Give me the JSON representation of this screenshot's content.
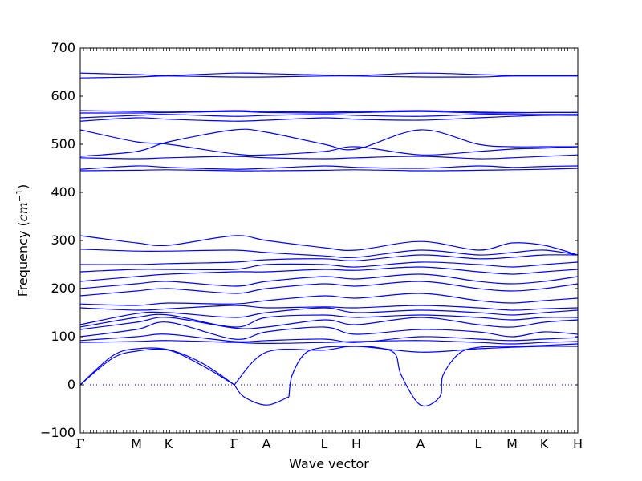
{
  "chart_data": {
    "type": "line",
    "title": "",
    "xlabel": "Wave vector",
    "ylabel_prefix": "Frequency (",
    "ylabel_unit_base": "cm",
    "ylabel_unit_exp": "−1",
    "ylabel_suffix": ")",
    "ylim": [
      -100,
      700
    ],
    "yticks": [
      -100,
      0,
      100,
      200,
      300,
      400,
      500,
      600,
      700
    ],
    "xlim": [
      0,
      15.5
    ],
    "grid": false,
    "zero_line": true,
    "line_color": "#0000ff",
    "zero_line_color": "#0000ff",
    "high_symmetry_points": [
      {
        "label": "Γ",
        "x": 0
      },
      {
        "label": "M",
        "x": 1.75
      },
      {
        "label": "K",
        "x": 2.75
      },
      {
        "label": "Γ",
        "x": 4.8
      },
      {
        "label": "A",
        "x": 5.8
      },
      {
        "label": "L",
        "x": 7.6
      },
      {
        "label": "H",
        "x": 8.6
      },
      {
        "label": "A",
        "x": 10.6
      },
      {
        "label": "L",
        "x": 12.4
      },
      {
        "label": "M",
        "x": 13.45
      },
      {
        "label": "K",
        "x": 14.45
      },
      {
        "label": "H",
        "x": 15.5
      }
    ],
    "series": [
      {
        "x": [
          0,
          1.0,
          1.75,
          2.75,
          3.8,
          4.8
        ],
        "y": [
          0,
          55,
          70,
          72,
          40,
          0
        ]
      },
      {
        "x": [
          0,
          1.0,
          1.75,
          2.75,
          3.8,
          4.8
        ],
        "y": [
          0,
          60,
          75,
          73,
          45,
          0
        ]
      },
      {
        "x": [
          4.8,
          5.1,
          5.8,
          6.5
        ],
        "y": [
          0,
          -25,
          -42,
          -25
        ]
      },
      {
        "x": [
          6.5,
          6.6,
          7.0,
          7.6,
          8.6,
          9.2,
          9.8,
          10.0,
          10.6,
          11.2,
          11.3,
          11.8,
          12.4,
          13.45,
          14.45,
          15.5
        ],
        "y": [
          -25,
          20,
          65,
          78,
          80,
          78,
          65,
          20,
          -42,
          -25,
          20,
          65,
          78,
          80,
          82,
          85
        ]
      },
      {
        "x": [
          4.8,
          5.8,
          7.6,
          8.6,
          10.6,
          12.4,
          13.45,
          14.45,
          15.5
        ],
        "y": [
          0,
          68,
          72,
          80,
          68,
          75,
          78,
          80,
          80
        ]
      },
      {
        "x": [
          0,
          1.75,
          2.75,
          4.8,
          5.8,
          7.6,
          8.6,
          10.6,
          12.4,
          13.45,
          14.45,
          15.5
        ],
        "y": [
          88,
          90,
          92,
          88,
          86,
          88,
          90,
          92,
          88,
          85,
          88,
          90
        ]
      },
      {
        "x": [
          0,
          1.75,
          2.75,
          4.8,
          5.8,
          7.6,
          8.6,
          10.6,
          12.4,
          13.45,
          14.45,
          15.5
        ],
        "y": [
          92,
          100,
          105,
          90,
          92,
          95,
          88,
          100,
          95,
          92,
          95,
          98
        ]
      },
      {
        "x": [
          0,
          1.75,
          2.75,
          4.8,
          5.8,
          7.6,
          8.6,
          10.6,
          12.4,
          13.45,
          14.45,
          15.5
        ],
        "y": [
          100,
          115,
          130,
          95,
          110,
          120,
          105,
          115,
          110,
          100,
          110,
          105
        ]
      },
      {
        "x": [
          0,
          1.75,
          2.75,
          4.8,
          5.8,
          7.6,
          8.6,
          10.6,
          12.4,
          13.45,
          14.45,
          15.5
        ],
        "y": [
          115,
          130,
          140,
          118,
          120,
          135,
          125,
          140,
          125,
          120,
          130,
          135
        ]
      },
      {
        "x": [
          0,
          1.75,
          2.75,
          4.8,
          5.8,
          7.6,
          8.6,
          10.6,
          12.4,
          13.45,
          14.45,
          15.5
        ],
        "y": [
          120,
          140,
          145,
          120,
          140,
          145,
          140,
          145,
          140,
          135,
          140,
          140
        ]
      },
      {
        "x": [
          0,
          1.75,
          2.75,
          4.8,
          5.8,
          7.6,
          8.6,
          10.6,
          12.4,
          13.45,
          14.45,
          15.5
        ],
        "y": [
          125,
          148,
          150,
          140,
          150,
          160,
          150,
          155,
          150,
          145,
          150,
          155
        ]
      },
      {
        "x": [
          0,
          1.75,
          2.75,
          4.8,
          5.8,
          7.6,
          8.6,
          10.6,
          12.4,
          13.45,
          14.45,
          15.5
        ],
        "y": [
          160,
          155,
          158,
          165,
          160,
          162,
          160,
          165,
          160,
          155,
          158,
          160
        ]
      },
      {
        "x": [
          0,
          1.75,
          2.75,
          4.8,
          5.8,
          7.6,
          8.6,
          10.6,
          12.4,
          13.45,
          14.45,
          15.5
        ],
        "y": [
          168,
          165,
          170,
          168,
          175,
          185,
          180,
          190,
          175,
          170,
          175,
          180
        ]
      },
      {
        "x": [
          0,
          1.75,
          2.75,
          4.8,
          5.8,
          7.6,
          8.6,
          10.6,
          12.4,
          13.45,
          14.45,
          15.5
        ],
        "y": [
          185,
          195,
          200,
          190,
          200,
          210,
          205,
          215,
          200,
          195,
          200,
          210
        ]
      },
      {
        "x": [
          0,
          1.75,
          2.75,
          4.8,
          5.8,
          7.6,
          8.6,
          10.6,
          12.4,
          13.45,
          14.45,
          15.5
        ],
        "y": [
          200,
          210,
          215,
          205,
          215,
          225,
          220,
          230,
          215,
          210,
          215,
          225
        ]
      },
      {
        "x": [
          0,
          1.75,
          2.75,
          4.8,
          5.8,
          7.6,
          8.6,
          10.6,
          12.4,
          13.45,
          14.45,
          15.5
        ],
        "y": [
          215,
          225,
          230,
          235,
          235,
          240,
          238,
          245,
          235,
          230,
          235,
          240
        ]
      },
      {
        "x": [
          0,
          1.75,
          2.75,
          4.8,
          5.8,
          7.6,
          8.6,
          10.6,
          12.4,
          13.45,
          14.45,
          15.5
        ],
        "y": [
          235,
          240,
          240,
          240,
          250,
          250,
          245,
          255,
          250,
          245,
          250,
          255
        ]
      },
      {
        "x": [
          0,
          1.75,
          2.75,
          4.8,
          5.8,
          7.6,
          8.6,
          10.6,
          12.4,
          13.45,
          14.45,
          15.5
        ],
        "y": [
          250,
          250,
          252,
          255,
          260,
          262,
          258,
          270,
          262,
          265,
          270,
          270
        ]
      },
      {
        "x": [
          0,
          1.75,
          2.75,
          4.8,
          5.8,
          7.6,
          8.6,
          10.6,
          12.4,
          13.45,
          14.45,
          15.5
        ],
        "y": [
          282,
          278,
          278,
          280,
          275,
          268,
          265,
          280,
          270,
          275,
          280,
          270
        ]
      },
      {
        "x": [
          0,
          1.75,
          2.75,
          4.8,
          5.8,
          7.6,
          8.6,
          10.6,
          12.4,
          13.45,
          14.45,
          15.5
        ],
        "y": [
          310,
          295,
          290,
          310,
          300,
          285,
          280,
          298,
          280,
          295,
          290,
          270
        ]
      },
      {
        "x": [
          0,
          1.75,
          2.75,
          4.8,
          5.8,
          7.6,
          8.6,
          10.6,
          12.4,
          13.45,
          14.45,
          15.5
        ],
        "y": [
          445,
          446,
          447,
          445,
          445,
          446,
          447,
          445,
          446,
          447,
          448,
          450
        ]
      },
      {
        "x": [
          0,
          1.75,
          2.75,
          4.8,
          5.8,
          7.6,
          8.6,
          10.6,
          12.4,
          13.45,
          14.45,
          15.5
        ],
        "y": [
          448,
          455,
          452,
          448,
          450,
          455,
          452,
          450,
          455,
          452,
          454,
          455
        ]
      },
      {
        "x": [
          0,
          1.75,
          2.75,
          4.8,
          5.8,
          7.6,
          8.6,
          10.6,
          12.4,
          13.45,
          14.45,
          15.5
        ],
        "y": [
          472,
          470,
          472,
          475,
          472,
          470,
          472,
          475,
          470,
          472,
          475,
          478
        ]
      },
      {
        "x": [
          0,
          1.75,
          2.75,
          4.8,
          5.8,
          7.6,
          8.6,
          10.6,
          12.4,
          13.45,
          14.45,
          15.5
        ],
        "y": [
          475,
          485,
          505,
          530,
          525,
          500,
          490,
          530,
          500,
          495,
          495,
          495
        ]
      },
      {
        "x": [
          0,
          1.75,
          2.75,
          4.8,
          5.8,
          7.6,
          8.6,
          10.6,
          12.4,
          13.45,
          14.45,
          15.5
        ],
        "y": [
          530,
          505,
          500,
          480,
          478,
          485,
          495,
          478,
          485,
          490,
          492,
          495
        ]
      },
      {
        "x": [
          0,
          1.75,
          2.75,
          4.8,
          5.8,
          7.6,
          8.6,
          10.6,
          12.4,
          13.45,
          14.45,
          15.5
        ],
        "y": [
          548,
          555,
          552,
          548,
          550,
          555,
          552,
          550,
          555,
          558,
          560,
          560
        ]
      },
      {
        "x": [
          0,
          1.75,
          2.75,
          4.8,
          5.8,
          7.6,
          8.6,
          10.6,
          12.4,
          13.45,
          14.45,
          15.5
        ],
        "y": [
          555,
          560,
          562,
          558,
          560,
          562,
          560,
          558,
          562,
          562,
          562,
          562
        ]
      },
      {
        "x": [
          0,
          1.75,
          2.75,
          4.8,
          5.8,
          7.6,
          8.6,
          10.6,
          12.4,
          13.45,
          14.45,
          15.5
        ],
        "y": [
          565,
          565,
          566,
          568,
          566,
          565,
          566,
          568,
          565,
          565,
          566,
          566
        ]
      },
      {
        "x": [
          0,
          1.75,
          2.75,
          4.8,
          5.8,
          7.6,
          8.6,
          10.6,
          12.4,
          13.45,
          14.45,
          15.5
        ],
        "y": [
          570,
          568,
          567,
          570,
          568,
          567,
          568,
          570,
          567,
          566,
          566,
          566
        ]
      },
      {
        "x": [
          0,
          1.75,
          2.75,
          4.8,
          5.8,
          7.6,
          8.6,
          10.6,
          12.4,
          13.45,
          14.45,
          15.5
        ],
        "y": [
          638,
          640,
          642,
          640,
          640,
          642,
          642,
          640,
          640,
          642,
          642,
          642
        ]
      },
      {
        "x": [
          0,
          1.75,
          2.75,
          4.8,
          5.8,
          7.6,
          8.6,
          10.6,
          12.4,
          13.45,
          14.45,
          15.5
        ],
        "y": [
          648,
          645,
          643,
          648,
          647,
          644,
          643,
          648,
          645,
          643,
          643,
          643
        ]
      }
    ]
  }
}
